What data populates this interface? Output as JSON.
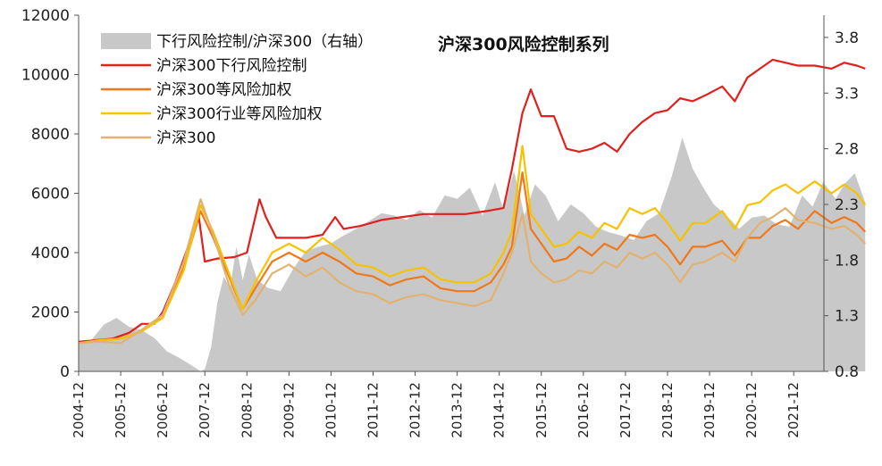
{
  "chart_data": {
    "type": "line",
    "title": "沪深300风险控制系列",
    "x_labels": [
      "2004-12",
      "2005-12",
      "2006-12",
      "2007-12",
      "2008-12",
      "2009-12",
      "2010-12",
      "2011-12",
      "2012-12",
      "2013-12",
      "2014-12",
      "2015-12",
      "2016-12",
      "2017-12",
      "2018-12",
      "2019-12",
      "2020-12",
      "2021-12"
    ],
    "y_left": {
      "min": 0,
      "max": 12000,
      "ticks": [
        "0",
        "2000",
        "4000",
        "6000",
        "8000",
        "10000",
        "12000"
      ]
    },
    "y_right": {
      "min": 0.8,
      "max": 4.0,
      "ticks": [
        "0.8",
        "1.3",
        "1.8",
        "2.3",
        "2.8",
        "3.3",
        "3.8"
      ]
    },
    "legend_position": "top-left",
    "grid": false,
    "series": [
      {
        "name": "下行风险控制/沪深300（右轴）",
        "type": "area",
        "axis": "right",
        "color": "#c8c8c8",
        "points": [
          [
            0,
            1.05
          ],
          [
            0.3,
            1.08
          ],
          [
            0.6,
            1.22
          ],
          [
            0.9,
            1.28
          ],
          [
            1.2,
            1.2
          ],
          [
            1.5,
            1.17
          ],
          [
            1.8,
            1.1
          ],
          [
            2.1,
            0.98
          ],
          [
            2.4,
            0.92
          ],
          [
            2.7,
            0.85
          ],
          [
            2.9,
            0.8
          ],
          [
            3.0,
            0.82
          ],
          [
            3.15,
            1.02
          ],
          [
            3.3,
            1.42
          ],
          [
            3.45,
            1.65
          ],
          [
            3.6,
            1.55
          ],
          [
            3.75,
            1.92
          ],
          [
            3.9,
            1.62
          ],
          [
            4.05,
            1.85
          ],
          [
            4.25,
            1.62
          ],
          [
            4.5,
            1.55
          ],
          [
            4.8,
            1.52
          ],
          [
            5.1,
            1.72
          ],
          [
            5.4,
            1.88
          ],
          [
            5.7,
            1.92
          ],
          [
            6.0,
            1.95
          ],
          [
            6.3,
            2.02
          ],
          [
            6.6,
            2.08
          ],
          [
            6.9,
            2.15
          ],
          [
            7.2,
            2.22
          ],
          [
            7.5,
            2.2
          ],
          [
            7.8,
            2.16
          ],
          [
            8.1,
            2.25
          ],
          [
            8.4,
            2.18
          ],
          [
            8.7,
            2.38
          ],
          [
            9.0,
            2.35
          ],
          [
            9.3,
            2.45
          ],
          [
            9.6,
            2.2
          ],
          [
            9.9,
            2.5
          ],
          [
            10.1,
            2.25
          ],
          [
            10.35,
            2.6
          ],
          [
            10.6,
            2.2
          ],
          [
            10.85,
            2.48
          ],
          [
            11.1,
            2.38
          ],
          [
            11.4,
            2.15
          ],
          [
            11.7,
            2.3
          ],
          [
            12.0,
            2.22
          ],
          [
            12.3,
            2.1
          ],
          [
            12.6,
            2.05
          ],
          [
            12.9,
            2.02
          ],
          [
            13.2,
            1.98
          ],
          [
            13.5,
            2.15
          ],
          [
            13.8,
            2.22
          ],
          [
            14.1,
            2.55
          ],
          [
            14.35,
            2.9
          ],
          [
            14.6,
            2.62
          ],
          [
            14.85,
            2.45
          ],
          [
            15.1,
            2.3
          ],
          [
            15.4,
            2.2
          ],
          [
            15.7,
            2.08
          ],
          [
            16.0,
            2.18
          ],
          [
            16.3,
            2.2
          ],
          [
            16.6,
            2.12
          ],
          [
            16.9,
            2.1
          ],
          [
            17.2,
            2.38
          ],
          [
            17.45,
            2.28
          ],
          [
            17.7,
            2.5
          ],
          [
            18.0,
            2.35
          ],
          [
            18.2,
            2.48
          ],
          [
            18.45,
            2.58
          ],
          [
            18.7,
            2.32
          ]
        ]
      },
      {
        "name": "沪深300下行风险控制",
        "type": "line",
        "axis": "left",
        "color": "#e0201e",
        "points": [
          [
            0,
            1000
          ],
          [
            0.4,
            1050
          ],
          [
            0.8,
            1100
          ],
          [
            1.2,
            1300
          ],
          [
            1.5,
            1600
          ],
          [
            1.8,
            1600
          ],
          [
            2.0,
            2000
          ],
          [
            2.3,
            3000
          ],
          [
            2.6,
            4200
          ],
          [
            2.85,
            5300
          ],
          [
            3.0,
            3700
          ],
          [
            3.3,
            3800
          ],
          [
            3.7,
            3850
          ],
          [
            4.0,
            4000
          ],
          [
            4.3,
            5800
          ],
          [
            4.45,
            5200
          ],
          [
            4.7,
            4500
          ],
          [
            5.0,
            4500
          ],
          [
            5.4,
            4500
          ],
          [
            5.8,
            4600
          ],
          [
            6.1,
            5200
          ],
          [
            6.3,
            4800
          ],
          [
            6.7,
            4900
          ],
          [
            7.2,
            5100
          ],
          [
            7.7,
            5200
          ],
          [
            8.2,
            5300
          ],
          [
            8.7,
            5300
          ],
          [
            9.2,
            5300
          ],
          [
            9.7,
            5400
          ],
          [
            10.1,
            5500
          ],
          [
            10.3,
            6800
          ],
          [
            10.55,
            8700
          ],
          [
            10.75,
            9500
          ],
          [
            11.0,
            8600
          ],
          [
            11.3,
            8600
          ],
          [
            11.6,
            7500
          ],
          [
            11.9,
            7400
          ],
          [
            12.2,
            7500
          ],
          [
            12.5,
            7700
          ],
          [
            12.8,
            7400
          ],
          [
            13.1,
            8000
          ],
          [
            13.4,
            8400
          ],
          [
            13.7,
            8700
          ],
          [
            14.0,
            8800
          ],
          [
            14.3,
            9200
          ],
          [
            14.6,
            9100
          ],
          [
            14.9,
            9300
          ],
          [
            15.3,
            9600
          ],
          [
            15.6,
            9100
          ],
          [
            15.9,
            9900
          ],
          [
            16.2,
            10200
          ],
          [
            16.5,
            10500
          ],
          [
            16.8,
            10400
          ],
          [
            17.1,
            10300
          ],
          [
            17.5,
            10300
          ],
          [
            17.9,
            10200
          ],
          [
            18.2,
            10400
          ],
          [
            18.5,
            10300
          ],
          [
            18.7,
            10200
          ]
        ]
      },
      {
        "name": "沪深300等风险加权",
        "type": "line",
        "axis": "left",
        "color": "#f07818",
        "points": [
          [
            0,
            950
          ],
          [
            0.5,
            1050
          ],
          [
            1.0,
            1100
          ],
          [
            1.5,
            1350
          ],
          [
            2.0,
            1800
          ],
          [
            2.5,
            3500
          ],
          [
            2.9,
            5400
          ],
          [
            3.2,
            4500
          ],
          [
            3.6,
            3100
          ],
          [
            3.9,
            2100
          ],
          [
            4.2,
            2800
          ],
          [
            4.6,
            3700
          ],
          [
            5.0,
            4000
          ],
          [
            5.4,
            3700
          ],
          [
            5.8,
            4000
          ],
          [
            6.2,
            3700
          ],
          [
            6.6,
            3300
          ],
          [
            7.0,
            3200
          ],
          [
            7.4,
            2900
          ],
          [
            7.8,
            3100
          ],
          [
            8.2,
            3200
          ],
          [
            8.6,
            2800
          ],
          [
            9.0,
            2700
          ],
          [
            9.4,
            2700
          ],
          [
            9.8,
            3000
          ],
          [
            10.1,
            3600
          ],
          [
            10.3,
            4200
          ],
          [
            10.55,
            6700
          ],
          [
            10.75,
            4800
          ],
          [
            11.0,
            4300
          ],
          [
            11.3,
            3700
          ],
          [
            11.6,
            3800
          ],
          [
            11.9,
            4200
          ],
          [
            12.2,
            3900
          ],
          [
            12.5,
            4300
          ],
          [
            12.8,
            4100
          ],
          [
            13.1,
            4600
          ],
          [
            13.4,
            4500
          ],
          [
            13.7,
            4600
          ],
          [
            14.0,
            4200
          ],
          [
            14.3,
            3600
          ],
          [
            14.6,
            4200
          ],
          [
            14.9,
            4200
          ],
          [
            15.3,
            4400
          ],
          [
            15.6,
            3900
          ],
          [
            15.9,
            4500
          ],
          [
            16.2,
            4500
          ],
          [
            16.5,
            4900
          ],
          [
            16.8,
            5100
          ],
          [
            17.1,
            4800
          ],
          [
            17.5,
            5400
          ],
          [
            17.9,
            5000
          ],
          [
            18.2,
            5200
          ],
          [
            18.5,
            5000
          ],
          [
            18.7,
            4700
          ]
        ]
      },
      {
        "name": "沪深300行业等风险加权",
        "type": "line",
        "axis": "left",
        "color": "#f7c200",
        "points": [
          [
            0,
            950
          ],
          [
            0.5,
            1050
          ],
          [
            1.0,
            1100
          ],
          [
            1.5,
            1350
          ],
          [
            2.0,
            1800
          ],
          [
            2.5,
            3400
          ],
          [
            2.9,
            5600
          ],
          [
            3.2,
            4700
          ],
          [
            3.6,
            3200
          ],
          [
            3.9,
            2100
          ],
          [
            4.2,
            3000
          ],
          [
            4.6,
            4000
          ],
          [
            5.0,
            4300
          ],
          [
            5.4,
            4000
          ],
          [
            5.8,
            4500
          ],
          [
            6.2,
            4100
          ],
          [
            6.6,
            3600
          ],
          [
            7.0,
            3500
          ],
          [
            7.4,
            3200
          ],
          [
            7.8,
            3400
          ],
          [
            8.2,
            3500
          ],
          [
            8.6,
            3100
          ],
          [
            9.0,
            3000
          ],
          [
            9.4,
            3000
          ],
          [
            9.8,
            3300
          ],
          [
            10.1,
            4000
          ],
          [
            10.3,
            4700
          ],
          [
            10.55,
            7600
          ],
          [
            10.75,
            5300
          ],
          [
            11.0,
            4800
          ],
          [
            11.3,
            4200
          ],
          [
            11.6,
            4300
          ],
          [
            11.9,
            4700
          ],
          [
            12.2,
            4500
          ],
          [
            12.5,
            5000
          ],
          [
            12.8,
            4800
          ],
          [
            13.1,
            5500
          ],
          [
            13.4,
            5300
          ],
          [
            13.7,
            5500
          ],
          [
            14.0,
            5000
          ],
          [
            14.3,
            4400
          ],
          [
            14.6,
            5000
          ],
          [
            14.9,
            5000
          ],
          [
            15.3,
            5400
          ],
          [
            15.6,
            4800
          ],
          [
            15.9,
            5600
          ],
          [
            16.2,
            5700
          ],
          [
            16.5,
            6100
          ],
          [
            16.8,
            6300
          ],
          [
            17.1,
            6000
          ],
          [
            17.5,
            6400
          ],
          [
            17.9,
            6000
          ],
          [
            18.2,
            6300
          ],
          [
            18.5,
            6000
          ],
          [
            18.7,
            5600
          ]
        ]
      },
      {
        "name": "沪深300",
        "type": "line",
        "axis": "left",
        "color": "#e2b270",
        "points": [
          [
            0,
            950
          ],
          [
            0.5,
            1000
          ],
          [
            1.0,
            950
          ],
          [
            1.5,
            1400
          ],
          [
            2.0,
            1900
          ],
          [
            2.5,
            3700
          ],
          [
            2.9,
            5800
          ],
          [
            3.2,
            4600
          ],
          [
            3.6,
            2800
          ],
          [
            3.9,
            1900
          ],
          [
            4.2,
            2400
          ],
          [
            4.6,
            3300
          ],
          [
            5.0,
            3600
          ],
          [
            5.4,
            3200
          ],
          [
            5.8,
            3500
          ],
          [
            6.2,
            3000
          ],
          [
            6.6,
            2700
          ],
          [
            7.0,
            2600
          ],
          [
            7.4,
            2300
          ],
          [
            7.8,
            2500
          ],
          [
            8.2,
            2600
          ],
          [
            8.6,
            2400
          ],
          [
            9.0,
            2300
          ],
          [
            9.4,
            2200
          ],
          [
            9.8,
            2400
          ],
          [
            10.1,
            3300
          ],
          [
            10.3,
            4000
          ],
          [
            10.55,
            5300
          ],
          [
            10.75,
            3700
          ],
          [
            11.0,
            3300
          ],
          [
            11.3,
            3000
          ],
          [
            11.6,
            3100
          ],
          [
            11.9,
            3400
          ],
          [
            12.2,
            3300
          ],
          [
            12.5,
            3700
          ],
          [
            12.8,
            3500
          ],
          [
            13.1,
            4000
          ],
          [
            13.4,
            3800
          ],
          [
            13.7,
            4000
          ],
          [
            14.0,
            3600
          ],
          [
            14.3,
            3000
          ],
          [
            14.6,
            3600
          ],
          [
            14.9,
            3700
          ],
          [
            15.3,
            4000
          ],
          [
            15.6,
            3700
          ],
          [
            15.9,
            4500
          ],
          [
            16.2,
            5000
          ],
          [
            16.5,
            5200
          ],
          [
            16.8,
            5500
          ],
          [
            17.1,
            5100
          ],
          [
            17.5,
            5000
          ],
          [
            17.9,
            4800
          ],
          [
            18.2,
            4900
          ],
          [
            18.5,
            4600
          ],
          [
            18.7,
            4300
          ]
        ]
      }
    ]
  }
}
